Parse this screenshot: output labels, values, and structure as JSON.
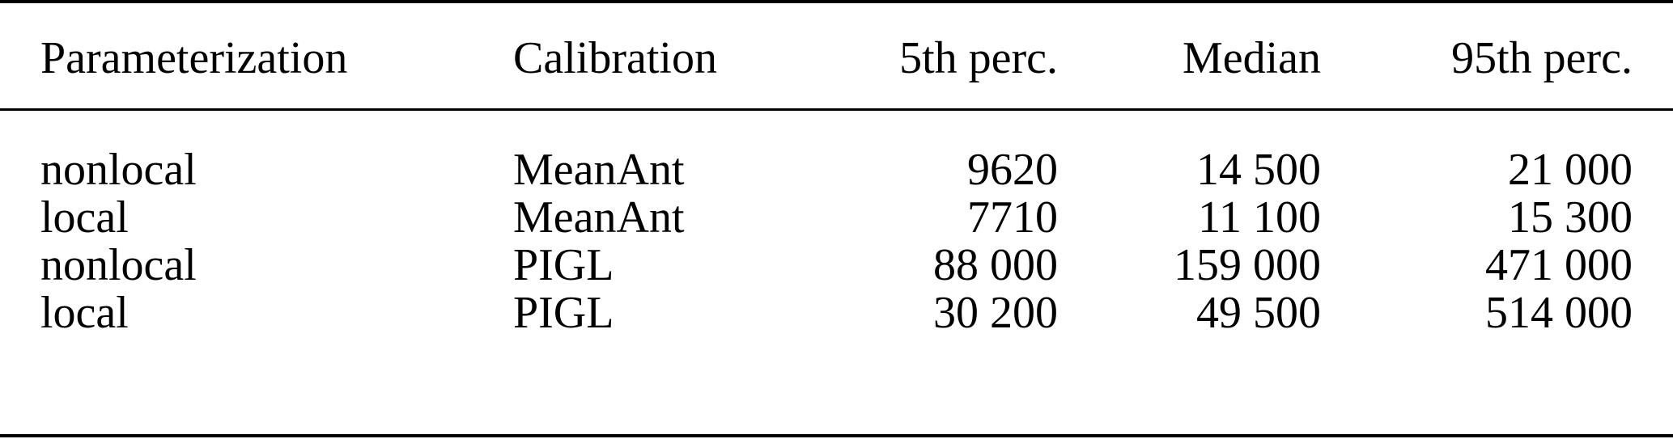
{
  "table": {
    "headers": [
      "Parameterization",
      "Calibration",
      "5th perc.",
      "Median",
      "95th perc."
    ],
    "rows": [
      [
        "nonlocal",
        "MeanAnt",
        "9620",
        "14 500",
        "21 000"
      ],
      [
        "local",
        "MeanAnt",
        "7710",
        "11 100",
        "15 300"
      ],
      [
        "nonlocal",
        "PIGL",
        "88 000",
        "159 000",
        "471 000"
      ],
      [
        "local",
        "PIGL",
        "30 200",
        "49 500",
        "514 000"
      ]
    ]
  }
}
